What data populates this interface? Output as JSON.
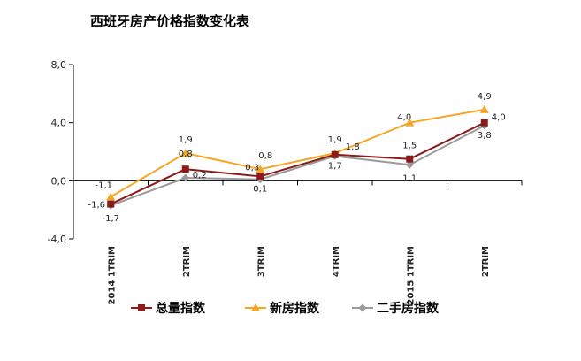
{
  "chart_data": {
    "type": "line",
    "title": "西班牙房产价格指数变化表",
    "categories": [
      "2014 1TRIM",
      "2TRIM",
      "3TRIM",
      "4TRIM",
      "2015 1TRIM",
      "2TRIM"
    ],
    "ylim": [
      -4.0,
      8.0
    ],
    "yticks": [
      "8,0",
      "4,0",
      "0,0",
      "-4,0"
    ],
    "series": [
      {
        "name": "总量指数",
        "color": "#8b1a1a",
        "marker": "square",
        "values": [
          -1.6,
          0.8,
          0.3,
          1.8,
          1.5,
          4.0
        ],
        "labels": [
          "-1,6",
          "0,8",
          "0,3",
          "1,8",
          "1,5",
          "4,0"
        ]
      },
      {
        "name": "新房指数",
        "color": "#f5a623",
        "marker": "triangle",
        "values": [
          -1.1,
          1.9,
          0.8,
          1.9,
          4.0,
          4.9
        ],
        "labels": [
          "-1,1",
          "1,9",
          "0,8",
          "1,9",
          "4,0",
          "4,9"
        ]
      },
      {
        "name": "二手房指数",
        "color": "#9a9a9a",
        "marker": "diamond",
        "values": [
          -1.7,
          0.2,
          0.1,
          1.7,
          1.1,
          3.8
        ],
        "labels": [
          "-1,7",
          "0,2",
          "0,1",
          "1,7",
          "1,1",
          "3,8"
        ]
      }
    ],
    "legend_position": "bottom",
    "grid": false
  }
}
